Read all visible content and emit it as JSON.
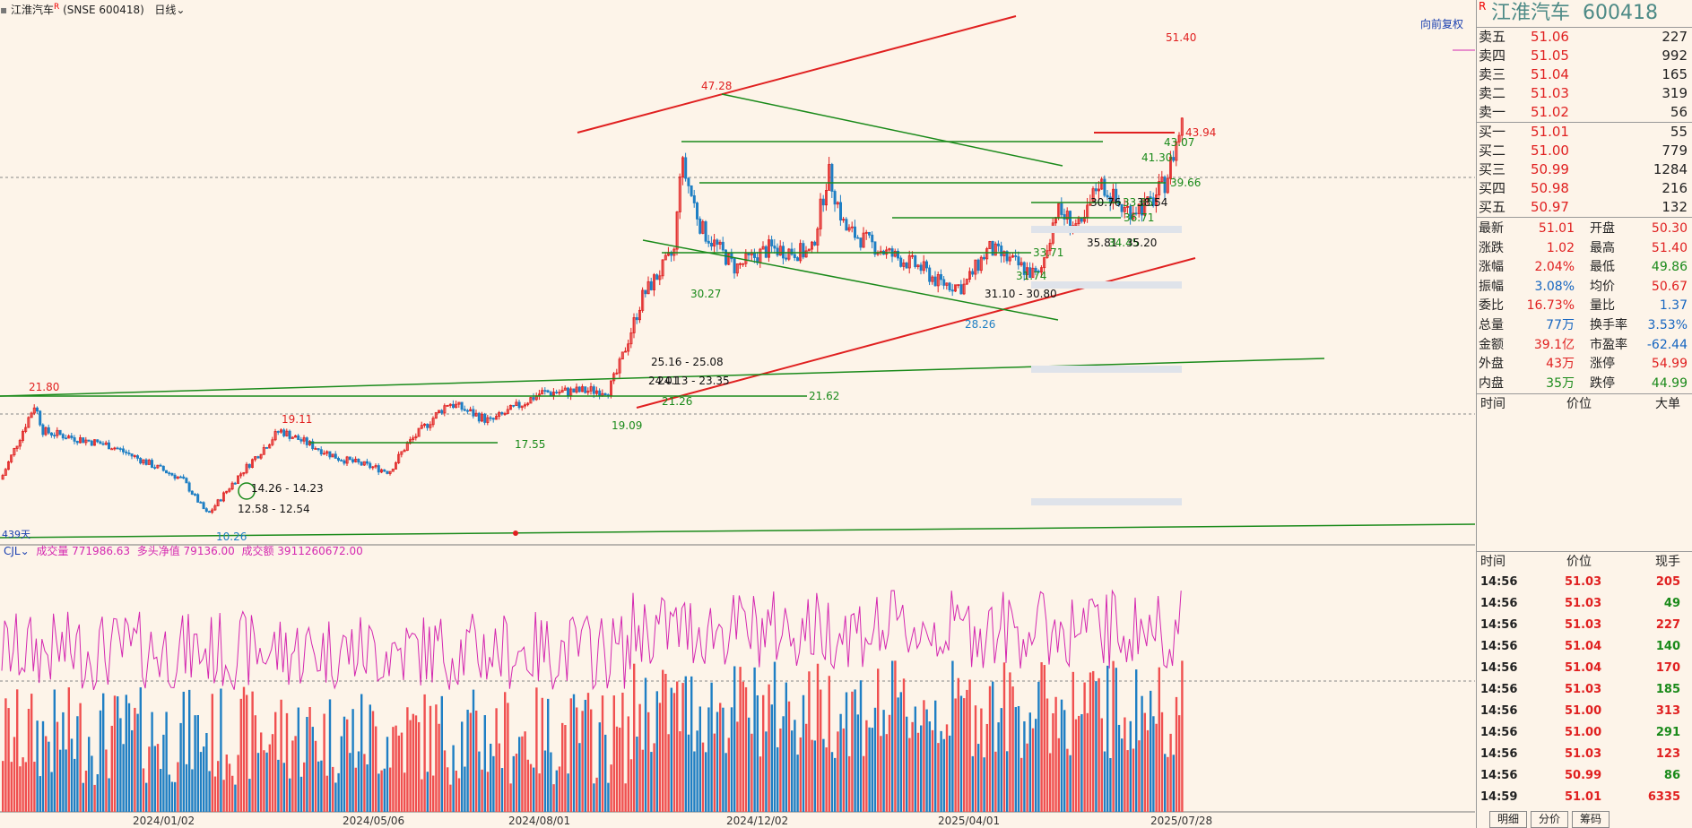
{
  "header": {
    "stock_name": "江淮汽车",
    "marker": "R",
    "code": "(SNSE 600418)",
    "period": "日线"
  },
  "toolbar": {
    "forward_label": "向前复权"
  },
  "price_labels": [
    "51.40",
    "47.28",
    "43.94",
    "43.07",
    "41.30",
    "39.66",
    "30.76",
    "33.85",
    "38.54",
    "36.71",
    "35.81",
    "34.45",
    "35.20",
    "33.71",
    "31.74",
    "31.10 - 30.80",
    "28.26",
    "30.27",
    "25.16 - 25.08",
    "24.01",
    "24.13 - 23.35",
    "21.26",
    "21.62",
    "21.80",
    "19.11",
    "19.09",
    "17.55",
    "14.26 - 14.23",
    "12.58 - 12.54",
    "10.26"
  ],
  "days_label": "439天",
  "indicator": {
    "name": "CJL",
    "vol_label": "成交量",
    "vol_value": "771986.63",
    "net_label": "多头净值",
    "net_value": "79136.00",
    "amt_label": "成交额",
    "amt_value": "3911260672.00"
  },
  "x_dates": [
    "2024/01/02",
    "2024/05/06",
    "2024/08/01",
    "2024/12/02",
    "2025/04/01",
    "2025/07/28"
  ],
  "quote": {
    "title_name": "江淮汽车",
    "title_code": "600418",
    "r_marker": "R",
    "asks": [
      {
        "label": "卖五",
        "price": "51.06",
        "vol": "227"
      },
      {
        "label": "卖四",
        "price": "51.05",
        "vol": "992"
      },
      {
        "label": "卖三",
        "price": "51.04",
        "vol": "165"
      },
      {
        "label": "卖二",
        "price": "51.03",
        "vol": "319"
      },
      {
        "label": "卖一",
        "price": "51.02",
        "vol": "56"
      }
    ],
    "bids": [
      {
        "label": "买一",
        "price": "51.01",
        "vol": "55"
      },
      {
        "label": "买二",
        "price": "51.00",
        "vol": "779"
      },
      {
        "label": "买三",
        "price": "50.99",
        "vol": "1284"
      },
      {
        "label": "买四",
        "price": "50.98",
        "vol": "216"
      },
      {
        "label": "买五",
        "price": "50.97",
        "vol": "132"
      }
    ],
    "stats": [
      {
        "l1": "最新",
        "v1": "51.01",
        "l2": "开盘",
        "v2": "50.30"
      },
      {
        "l1": "涨跌",
        "v1": "1.02",
        "l2": "最高",
        "v2": "51.40"
      },
      {
        "l1": "涨幅",
        "v1": "2.04%",
        "l2": "最低",
        "v2": "49.86"
      },
      {
        "l1": "振幅",
        "v1": "3.08%",
        "l2": "均价",
        "v2": "50.67"
      },
      {
        "l1": "委比",
        "v1": "16.73%",
        "l2": "量比",
        "v2": "1.37"
      },
      {
        "l1": "总量",
        "v1": "77万",
        "l2": "换手率",
        "v2": "3.53%"
      },
      {
        "l1": "金额",
        "v1": "39.1亿",
        "l2": "市盈率",
        "v2": "-62.44"
      },
      {
        "l1": "外盘",
        "v1": "43万",
        "l2": "涨停",
        "v2": "54.99"
      },
      {
        "l1": "内盘",
        "v1": "35万",
        "l2": "跌停",
        "v2": "44.99"
      }
    ],
    "big_hdr": {
      "time": "时间",
      "price": "价位",
      "big": "大单"
    },
    "tick_hdr": {
      "time": "时间",
      "price": "价位",
      "vol": "现手"
    },
    "ticks": [
      {
        "time": "14:56",
        "price": "51.03",
        "vol": "205"
      },
      {
        "time": "14:56",
        "price": "51.03",
        "vol": "49"
      },
      {
        "time": "14:56",
        "price": "51.03",
        "vol": "227"
      },
      {
        "time": "14:56",
        "price": "51.04",
        "vol": "140"
      },
      {
        "time": "14:56",
        "price": "51.04",
        "vol": "170"
      },
      {
        "time": "14:56",
        "price": "51.03",
        "vol": "185"
      },
      {
        "time": "14:56",
        "price": "51.00",
        "vol": "313"
      },
      {
        "time": "14:56",
        "price": "51.00",
        "vol": "291"
      },
      {
        "time": "14:56",
        "price": "51.03",
        "vol": "123"
      },
      {
        "time": "14:56",
        "price": "50.99",
        "vol": "86"
      },
      {
        "time": "14:59",
        "price": "51.01",
        "vol": "6335"
      }
    ],
    "tabs": [
      "明细",
      "分价",
      "筹码"
    ]
  },
  "colors": {
    "up": "#e02020",
    "down": "#1f7fc4",
    "line_green": "#1a8a1a",
    "vol_line": "#d428b0"
  }
}
